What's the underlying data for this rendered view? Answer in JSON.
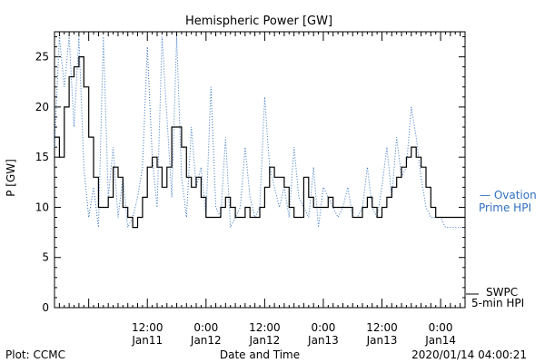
{
  "chart_data": {
    "type": "line",
    "title": "Hemispheric Power [GW]",
    "ylabel": "P [GW]",
    "xlabel": "Date and Time",
    "ylim": [
      0,
      27.5
    ],
    "yticks": [
      0,
      5,
      10,
      15,
      20,
      25
    ],
    "x_range_hours": [
      "2020-01-10 17:00",
      "2020-01-14 05:00"
    ],
    "x_ticks": [
      {
        "time": "2020-01-11 12:00",
        "label1": "12:00",
        "label2": "Jan11"
      },
      {
        "time": "2020-01-12 00:00",
        "label1": "0:00",
        "label2": "Jan12"
      },
      {
        "time": "2020-01-12 12:00",
        "label1": "12:00",
        "label2": "Jan12"
      },
      {
        "time": "2020-01-13 00:00",
        "label1": "0:00",
        "label2": "Jan13"
      },
      {
        "time": "2020-01-13 12:00",
        "label1": "12:00",
        "label2": "Jan13"
      },
      {
        "time": "2020-01-14 00:00",
        "label1": "0:00",
        "label2": "Jan14"
      }
    ],
    "series": [
      {
        "name": "SWPC 5-min HPI",
        "style": "solid",
        "color": "#000000",
        "hours_since_start": [
          0,
          1,
          2,
          3,
          4,
          5,
          6,
          7,
          8,
          9,
          10,
          11,
          12,
          13,
          14,
          15,
          16,
          17,
          18,
          19,
          20,
          21,
          22,
          23,
          24,
          25,
          26,
          27,
          28,
          29,
          30,
          31,
          32,
          33,
          34,
          35,
          36,
          37,
          38,
          39,
          40,
          41,
          42,
          43,
          44,
          45,
          46,
          47,
          48,
          49,
          50,
          51,
          52,
          53,
          54,
          55,
          56,
          57,
          58,
          59,
          60,
          61,
          62,
          63,
          64,
          65,
          66,
          67,
          68,
          69,
          70,
          71,
          72,
          73,
          74,
          75,
          76,
          77,
          78,
          79,
          80,
          81,
          82,
          83,
          84
        ],
        "values": [
          17,
          15,
          20,
          23,
          24,
          25,
          22,
          17,
          13,
          10,
          10,
          11,
          14,
          13,
          10,
          9,
          8,
          9,
          11,
          14,
          15,
          14,
          12,
          14,
          18,
          18,
          16,
          13,
          12,
          13,
          11,
          9,
          9,
          9,
          10,
          11,
          10,
          9,
          9,
          10,
          9,
          9,
          10,
          12,
          14,
          13,
          13,
          12,
          10,
          9,
          9,
          13,
          11,
          10,
          10,
          10,
          11,
          10,
          10,
          10,
          10,
          9,
          9,
          10,
          11,
          10,
          9,
          10,
          11,
          12,
          13,
          14,
          15,
          16,
          15,
          14,
          12,
          10,
          9,
          9,
          9,
          9,
          9,
          9,
          9
        ]
      },
      {
        "name": "Ovation Prime HPI",
        "style": "dotted",
        "color": "#2f6fc0",
        "hours_since_start": [
          0,
          1,
          2,
          3,
          4,
          5,
          6,
          7,
          8,
          9,
          10,
          11,
          12,
          13,
          14,
          15,
          16,
          17,
          18,
          19,
          20,
          21,
          22,
          23,
          24,
          25,
          26,
          27,
          28,
          29,
          30,
          31,
          32,
          33,
          34,
          35,
          36,
          37,
          38,
          39,
          40,
          41,
          42,
          43,
          44,
          45,
          46,
          47,
          48,
          49,
          50,
          51,
          52,
          53,
          54,
          55,
          56,
          57,
          58,
          59,
          60,
          61,
          62,
          63,
          64,
          65,
          66,
          67,
          68,
          69,
          70,
          71,
          72,
          73,
          74,
          75,
          76,
          77,
          78,
          79,
          80,
          81,
          82,
          83,
          84
        ],
        "values": [
          16,
          27,
          22,
          27,
          18,
          27,
          14,
          9,
          12,
          8,
          27,
          11,
          16,
          9,
          13,
          8,
          9,
          11,
          14,
          26,
          15,
          10,
          27,
          19,
          11,
          27,
          13,
          9,
          18,
          12,
          14,
          9,
          22,
          10,
          9,
          17,
          8,
          9,
          10,
          16,
          11,
          9,
          10,
          21,
          14,
          12,
          10,
          12,
          9,
          16,
          11,
          10,
          9,
          14,
          8,
          12,
          11,
          10,
          9,
          10,
          12,
          9,
          9,
          10,
          14,
          10,
          9,
          12,
          16,
          11,
          17,
          13,
          14,
          20,
          17,
          13,
          10,
          9,
          9,
          9,
          8,
          8,
          8,
          8,
          8
        ]
      }
    ],
    "legend": [
      {
        "text1": "— Ovation",
        "text2": "Prime HPI",
        "color": "#2f6fc0"
      },
      {
        "text1": "SWPC",
        "text2": "5-min HPI",
        "color": "#000000"
      }
    ]
  },
  "footer": {
    "left": "Plot: CCMC",
    "center": "Date and Time",
    "right": "2020/01/14 04:00:21"
  }
}
